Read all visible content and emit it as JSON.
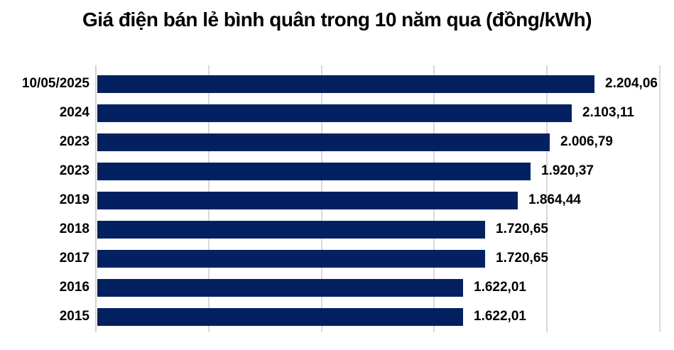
{
  "chart_data": {
    "type": "bar",
    "orientation": "horizontal",
    "title": "Giá điện bán lẻ bình quân trong 10 năm qua (đồng/kWh)",
    "categories": [
      "10/05/2025",
      "2024",
      "2023",
      "2023",
      "2019",
      "2018",
      "2017",
      "2016",
      "2015"
    ],
    "values": [
      2204.06,
      2103.11,
      2006.79,
      1920.37,
      1864.44,
      1720.65,
      1720.65,
      1622.01,
      1622.01
    ],
    "value_labels": [
      "2.204,06",
      "2.103,11",
      "2.006,79",
      "1.920,37",
      "1.864,44",
      "1.720,65",
      "1.720,65",
      "1.622,01",
      "1.622,01"
    ],
    "xlim": [
      0,
      2500
    ],
    "gridline_interval": 500,
    "grid": true,
    "legend": false,
    "bar_color": "#032161",
    "gridline_color": "#d9d9d9",
    "axis_color": "#d2d2d2",
    "text_color": "#000000",
    "background_color": "#ffffff"
  }
}
